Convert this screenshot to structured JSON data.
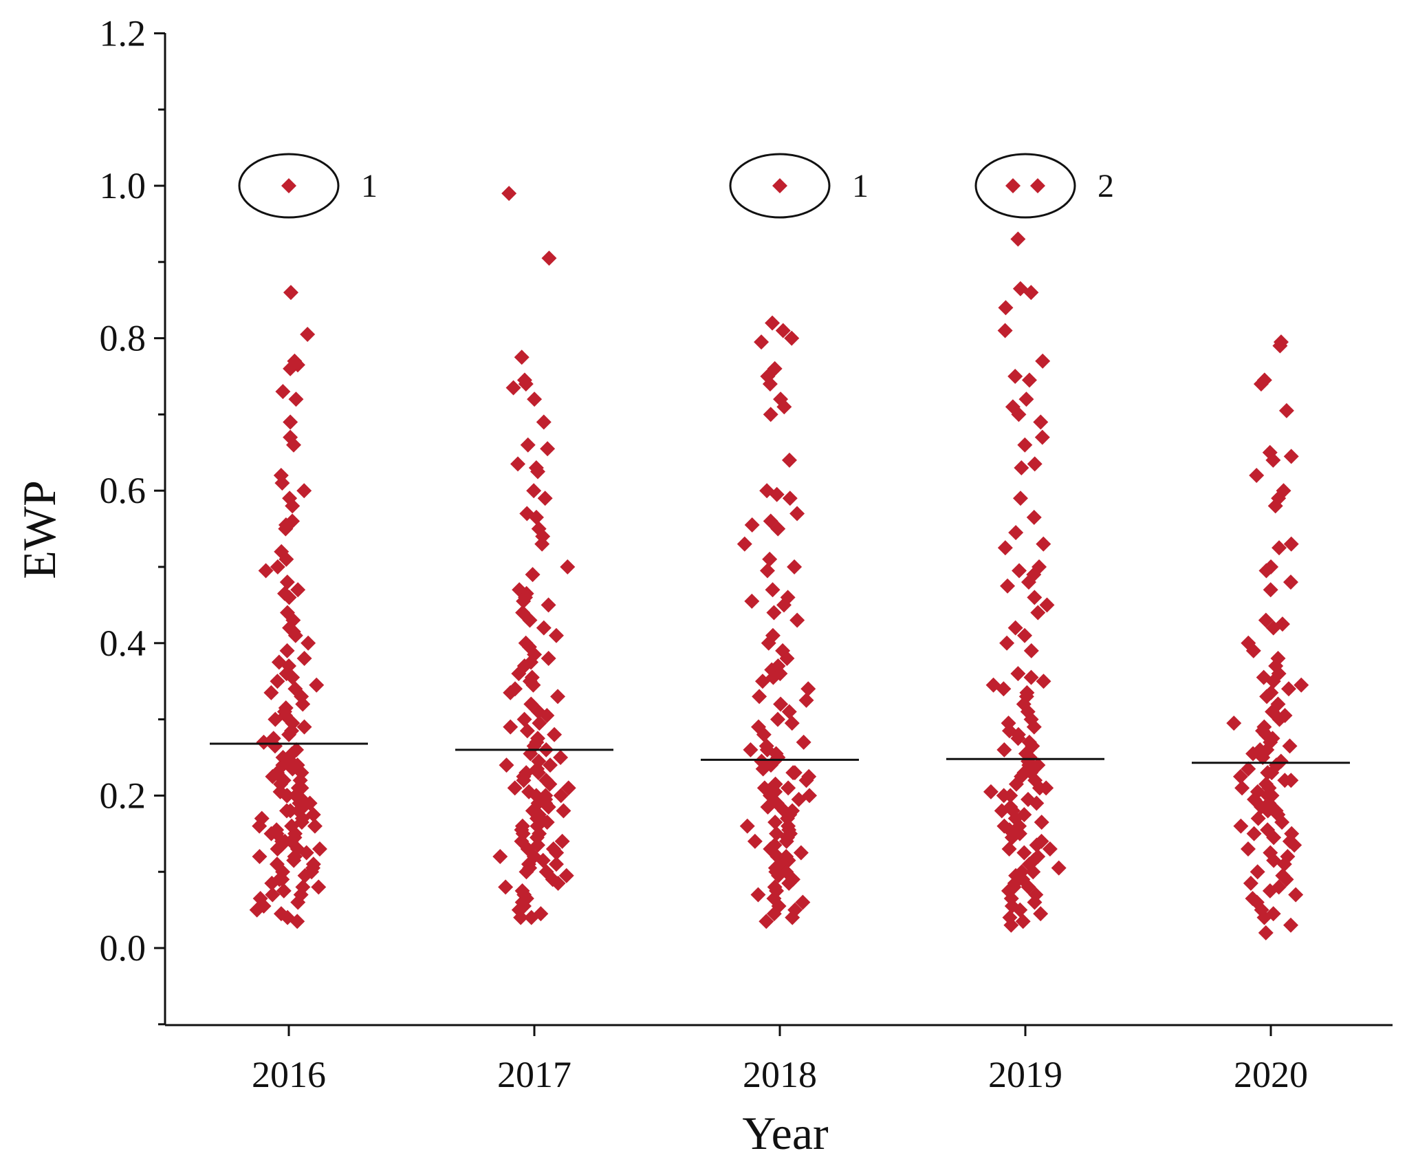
{
  "chart_data": {
    "type": "scatter",
    "title": "",
    "xlabel": "Year",
    "ylabel": "EWP",
    "ylim": [
      -0.1,
      1.2
    ],
    "yticks": [
      "0.0",
      "0.2",
      "0.4",
      "0.6",
      "0.8",
      "1.0",
      "1.2"
    ],
    "categories": [
      "2016",
      "2017",
      "2018",
      "2019",
      "2020"
    ],
    "grid": false,
    "legend": "none",
    "point_color": "#c0202e",
    "marker": "diamond",
    "series": [
      {
        "category": "2016",
        "mean": 0.268,
        "highlighted": [
          1.0
        ],
        "annotation": "1",
        "values": [
          0.86,
          0.805,
          0.77,
          0.765,
          0.76,
          0.73,
          0.72,
          0.69,
          0.67,
          0.66,
          0.62,
          0.61,
          0.6,
          0.59,
          0.58,
          0.56,
          0.555,
          0.55,
          0.52,
          0.51,
          0.5,
          0.495,
          0.48,
          0.47,
          0.465,
          0.46,
          0.44,
          0.43,
          0.42,
          0.415,
          0.41,
          0.4,
          0.39,
          0.38,
          0.375,
          0.37,
          0.36,
          0.355,
          0.35,
          0.345,
          0.34,
          0.335,
          0.33,
          0.32,
          0.315,
          0.31,
          0.305,
          0.3,
          0.295,
          0.29,
          0.285,
          0.28,
          0.275,
          0.27,
          0.265,
          0.26,
          0.255,
          0.25,
          0.245,
          0.24,
          0.24,
          0.235,
          0.23,
          0.23,
          0.225,
          0.22,
          0.22,
          0.215,
          0.21,
          0.21,
          0.205,
          0.2,
          0.2,
          0.2,
          0.195,
          0.19,
          0.19,
          0.185,
          0.18,
          0.18,
          0.18,
          0.175,
          0.17,
          0.17,
          0.165,
          0.16,
          0.16,
          0.16,
          0.155,
          0.15,
          0.15,
          0.15,
          0.145,
          0.14,
          0.14,
          0.14,
          0.135,
          0.13,
          0.13,
          0.13,
          0.125,
          0.12,
          0.12,
          0.12,
          0.115,
          0.11,
          0.11,
          0.105,
          0.1,
          0.1,
          0.095,
          0.09,
          0.09,
          0.085,
          0.08,
          0.08,
          0.075,
          0.07,
          0.07,
          0.065,
          0.06,
          0.055,
          0.05,
          0.045,
          0.04,
          0.035
        ]
      },
      {
        "category": "2017",
        "mean": 0.26,
        "highlighted": [],
        "annotation": "",
        "values": [
          0.99,
          0.905,
          0.775,
          0.745,
          0.74,
          0.735,
          0.72,
          0.69,
          0.66,
          0.655,
          0.635,
          0.63,
          0.625,
          0.6,
          0.59,
          0.57,
          0.565,
          0.55,
          0.54,
          0.53,
          0.5,
          0.49,
          0.47,
          0.465,
          0.46,
          0.455,
          0.45,
          0.44,
          0.43,
          0.42,
          0.41,
          0.4,
          0.395,
          0.385,
          0.38,
          0.375,
          0.37,
          0.36,
          0.355,
          0.35,
          0.345,
          0.34,
          0.335,
          0.33,
          0.32,
          0.31,
          0.305,
          0.3,
          0.295,
          0.29,
          0.285,
          0.28,
          0.275,
          0.27,
          0.265,
          0.26,
          0.255,
          0.25,
          0.245,
          0.24,
          0.24,
          0.235,
          0.23,
          0.23,
          0.225,
          0.22,
          0.22,
          0.215,
          0.21,
          0.21,
          0.205,
          0.2,
          0.2,
          0.2,
          0.195,
          0.19,
          0.19,
          0.185,
          0.18,
          0.18,
          0.175,
          0.17,
          0.17,
          0.165,
          0.16,
          0.16,
          0.155,
          0.15,
          0.15,
          0.145,
          0.14,
          0.14,
          0.135,
          0.13,
          0.13,
          0.125,
          0.12,
          0.12,
          0.115,
          0.11,
          0.11,
          0.105,
          0.1,
          0.1,
          0.095,
          0.09,
          0.085,
          0.08,
          0.075,
          0.07,
          0.065,
          0.06,
          0.055,
          0.05,
          0.045,
          0.04,
          0.04
        ]
      },
      {
        "category": "2018",
        "mean": 0.247,
        "highlighted": [
          1.0
        ],
        "annotation": "1",
        "values": [
          0.82,
          0.81,
          0.8,
          0.795,
          0.76,
          0.75,
          0.74,
          0.72,
          0.71,
          0.7,
          0.64,
          0.6,
          0.595,
          0.59,
          0.57,
          0.56,
          0.555,
          0.55,
          0.53,
          0.51,
          0.5,
          0.495,
          0.47,
          0.46,
          0.455,
          0.45,
          0.44,
          0.43,
          0.41,
          0.4,
          0.39,
          0.38,
          0.37,
          0.365,
          0.36,
          0.355,
          0.35,
          0.34,
          0.33,
          0.325,
          0.32,
          0.31,
          0.3,
          0.295,
          0.29,
          0.28,
          0.27,
          0.265,
          0.26,
          0.26,
          0.255,
          0.25,
          0.245,
          0.24,
          0.235,
          0.23,
          0.23,
          0.225,
          0.22,
          0.215,
          0.21,
          0.21,
          0.205,
          0.2,
          0.2,
          0.195,
          0.19,
          0.185,
          0.18,
          0.18,
          0.175,
          0.17,
          0.165,
          0.16,
          0.16,
          0.155,
          0.15,
          0.15,
          0.145,
          0.14,
          0.14,
          0.135,
          0.13,
          0.125,
          0.12,
          0.12,
          0.115,
          0.11,
          0.105,
          0.1,
          0.1,
          0.095,
          0.09,
          0.085,
          0.08,
          0.075,
          0.07,
          0.065,
          0.06,
          0.055,
          0.05,
          0.045,
          0.04,
          0.035
        ]
      },
      {
        "category": "2019",
        "mean": 0.248,
        "highlighted": [
          1.0,
          1.0
        ],
        "annotation": "2",
        "values": [
          0.93,
          0.865,
          0.86,
          0.84,
          0.81,
          0.77,
          0.75,
          0.745,
          0.72,
          0.71,
          0.7,
          0.69,
          0.67,
          0.66,
          0.635,
          0.63,
          0.59,
          0.565,
          0.545,
          0.53,
          0.525,
          0.5,
          0.495,
          0.49,
          0.48,
          0.475,
          0.46,
          0.45,
          0.44,
          0.42,
          0.41,
          0.4,
          0.39,
          0.36,
          0.355,
          0.35,
          0.345,
          0.34,
          0.335,
          0.33,
          0.32,
          0.31,
          0.3,
          0.295,
          0.29,
          0.285,
          0.28,
          0.275,
          0.27,
          0.265,
          0.26,
          0.255,
          0.25,
          0.245,
          0.24,
          0.24,
          0.235,
          0.23,
          0.23,
          0.225,
          0.22,
          0.215,
          0.21,
          0.21,
          0.205,
          0.2,
          0.2,
          0.195,
          0.19,
          0.185,
          0.18,
          0.18,
          0.175,
          0.17,
          0.165,
          0.16,
          0.16,
          0.155,
          0.15,
          0.15,
          0.145,
          0.14,
          0.135,
          0.13,
          0.13,
          0.125,
          0.12,
          0.115,
          0.11,
          0.105,
          0.1,
          0.1,
          0.095,
          0.09,
          0.085,
          0.08,
          0.08,
          0.075,
          0.07,
          0.065,
          0.06,
          0.055,
          0.05,
          0.045,
          0.04,
          0.035,
          0.03
        ]
      },
      {
        "category": "2020",
        "mean": 0.243,
        "highlighted": [],
        "annotation": "",
        "values": [
          0.795,
          0.79,
          0.745,
          0.74,
          0.705,
          0.65,
          0.645,
          0.64,
          0.62,
          0.6,
          0.59,
          0.58,
          0.53,
          0.525,
          0.5,
          0.495,
          0.48,
          0.47,
          0.43,
          0.425,
          0.42,
          0.4,
          0.39,
          0.38,
          0.37,
          0.36,
          0.355,
          0.35,
          0.345,
          0.34,
          0.335,
          0.33,
          0.32,
          0.31,
          0.305,
          0.3,
          0.295,
          0.29,
          0.285,
          0.28,
          0.275,
          0.27,
          0.265,
          0.26,
          0.26,
          0.255,
          0.25,
          0.245,
          0.24,
          0.24,
          0.235,
          0.23,
          0.23,
          0.225,
          0.22,
          0.22,
          0.215,
          0.21,
          0.21,
          0.205,
          0.2,
          0.2,
          0.195,
          0.19,
          0.185,
          0.18,
          0.18,
          0.175,
          0.17,
          0.165,
          0.16,
          0.155,
          0.15,
          0.15,
          0.145,
          0.14,
          0.135,
          0.13,
          0.125,
          0.12,
          0.115,
          0.11,
          0.1,
          0.095,
          0.09,
          0.085,
          0.08,
          0.075,
          0.07,
          0.065,
          0.06,
          0.05,
          0.045,
          0.04,
          0.03,
          0.02
        ]
      }
    ]
  }
}
